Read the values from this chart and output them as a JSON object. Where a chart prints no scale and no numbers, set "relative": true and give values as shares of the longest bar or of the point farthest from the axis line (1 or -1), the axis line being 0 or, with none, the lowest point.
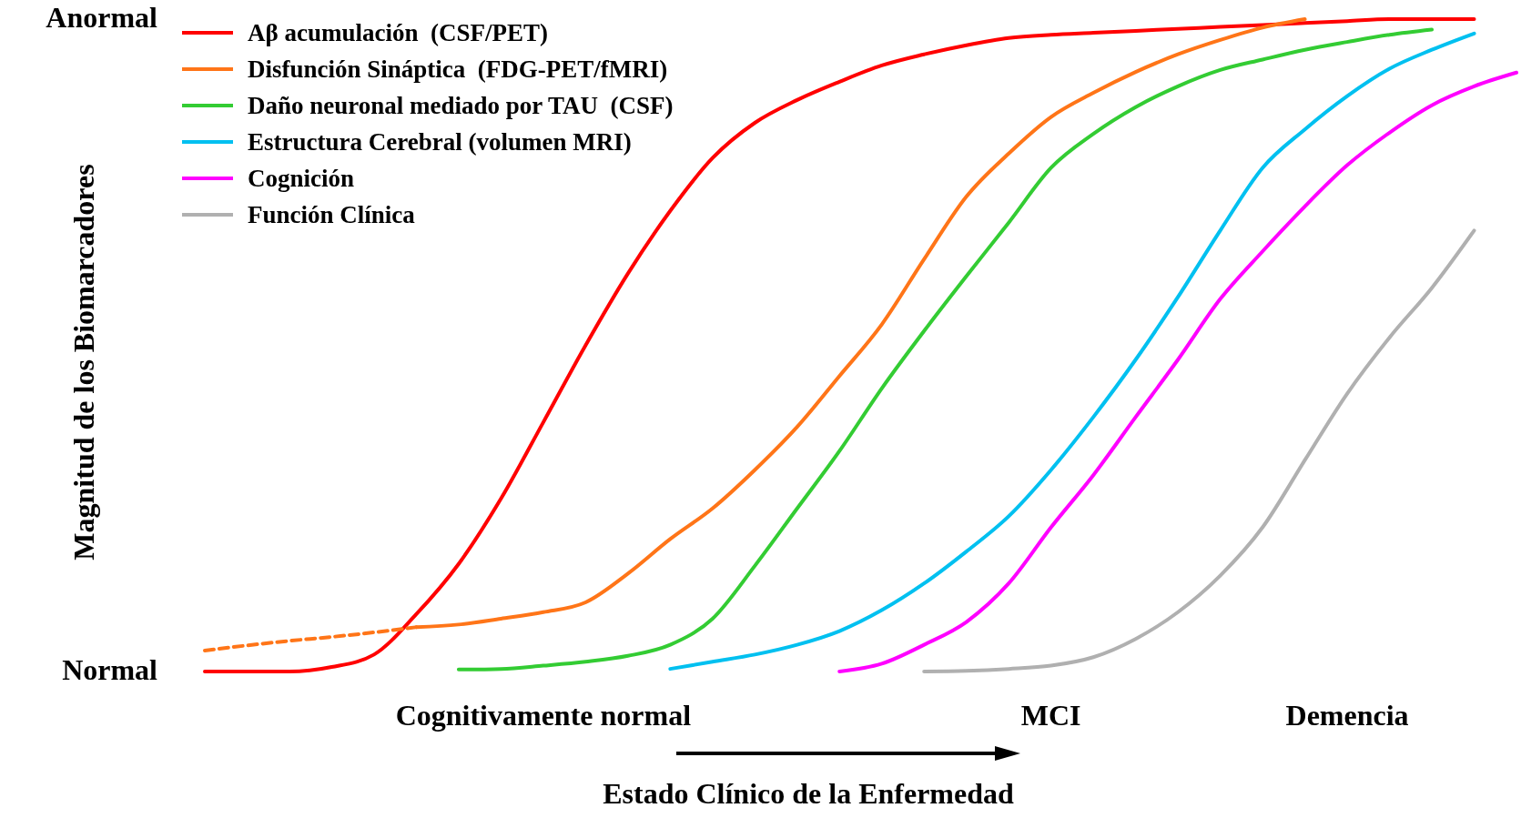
{
  "chart_data": {
    "type": "line",
    "relative": true,
    "xlabel": "Estado Clínico de la Enfermedad",
    "ylabel": "Magnitud de los Biomarcadores",
    "annotations": [
      "Anormal",
      "Normal"
    ],
    "categories": [
      null,
      null,
      null,
      null,
      null,
      null,
      null,
      null,
      "Cognitivamente  normal",
      null,
      null,
      null,
      null,
      null,
      null,
      null,
      null,
      null,
      null,
      null,
      "MCI",
      null,
      null,
      null,
      null,
      null,
      null,
      "Demencia",
      null,
      null,
      null,
      null
    ],
    "grid": false,
    "legend": "top left",
    "series": [
      {
        "name": "Aβ acumulación  (CSF/PET)",
        "color": "#ff0000",
        "values": [
          0,
          0,
          0,
          0.007,
          0.026,
          0.088,
          0.165,
          0.265,
          0.382,
          0.5,
          0.61,
          0.706,
          0.787,
          0.841,
          0.876,
          0.904,
          0.929,
          0.946,
          0.96,
          0.971,
          0.976,
          0.979,
          0.982,
          0.985,
          0.988,
          0.991,
          0.994,
          0.997,
          1,
          1,
          1,
          null
        ]
      },
      {
        "name": "Disfunción Sináptica  (FDG-PET/fMRI)",
        "color": "#ff7518",
        "values": [
          null,
          null,
          null,
          null,
          null,
          0.068,
          0.072,
          0.081,
          0.091,
          0.106,
          0.15,
          0.203,
          0.25,
          0.309,
          0.375,
          0.453,
          0.532,
          0.632,
          0.728,
          0.794,
          0.85,
          0.887,
          0.919,
          0.946,
          0.968,
          0.987,
          1,
          null,
          null,
          null,
          null,
          null
        ]
      },
      {
        "color": "#ff7518",
        "line_style": "dashed",
        "values": [
          0.032,
          0.04,
          0.047,
          0.053,
          0.06,
          0.068,
          null,
          null,
          null,
          null,
          null,
          null,
          null,
          null,
          null,
          null,
          null,
          null,
          null,
          null,
          null,
          null,
          null,
          null,
          null,
          null,
          null,
          null,
          null,
          null,
          null,
          null
        ]
      },
      {
        "name": "Daño neuronal mediado por TAU  (CSF)",
        "color": "#33cc33",
        "values": [
          null,
          null,
          null,
          null,
          null,
          null,
          0.003,
          0.004,
          0.009,
          0.015,
          0.024,
          0.041,
          0.081,
          0.162,
          0.25,
          0.338,
          0.434,
          0.522,
          0.606,
          0.688,
          0.772,
          0.824,
          0.865,
          0.897,
          0.922,
          0.938,
          0.953,
          0.965,
          0.976,
          0.984,
          null,
          null
        ]
      },
      {
        "name": "Estructura Cerebral (volumen MRI)",
        "color": "#00c0f0",
        "values": [
          null,
          null,
          null,
          null,
          null,
          null,
          null,
          null,
          null,
          null,
          null,
          0.004,
          0.015,
          0.026,
          0.041,
          0.062,
          0.094,
          0.135,
          0.184,
          0.238,
          0.309,
          0.39,
          0.478,
          0.574,
          0.676,
          0.772,
          0.831,
          0.882,
          0.924,
          0.953,
          0.978,
          null
        ]
      },
      {
        "name": "Cognición",
        "color": "#ff00ff",
        "values": [
          null,
          null,
          null,
          null,
          null,
          null,
          null,
          null,
          null,
          null,
          null,
          null,
          null,
          null,
          null,
          0,
          0.012,
          0.041,
          0.076,
          0.135,
          0.221,
          0.301,
          0.39,
          0.478,
          0.571,
          0.644,
          0.713,
          0.776,
          0.826,
          0.868,
          0.897,
          0.918
        ]
      },
      {
        "name": "Función Clínica",
        "color": "#b0b0b0",
        "values": [
          null,
          null,
          null,
          null,
          null,
          null,
          null,
          null,
          null,
          null,
          null,
          null,
          null,
          null,
          null,
          null,
          null,
          0,
          0.001,
          0.004,
          0.009,
          0.022,
          0.05,
          0.091,
          0.147,
          0.221,
          0.324,
          0.426,
          0.512,
          0.588,
          0.676,
          null
        ]
      }
    ]
  }
}
